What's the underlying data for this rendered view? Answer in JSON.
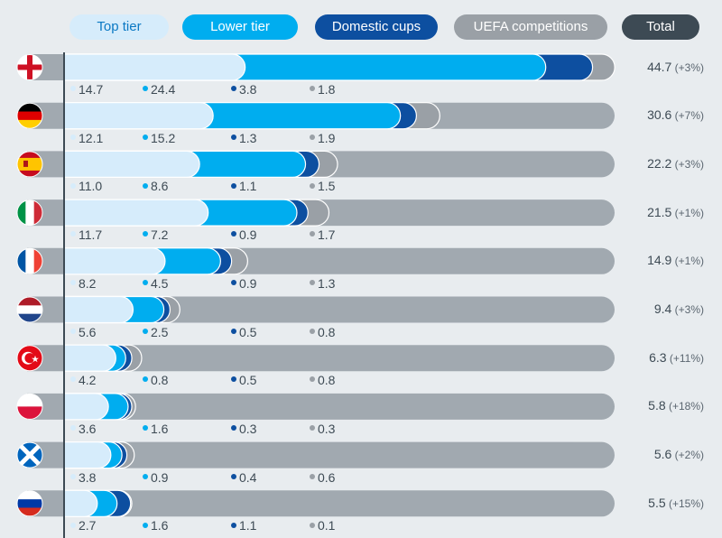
{
  "legend": {
    "top_tier": "Top tier",
    "lower_tier": "Lower tier",
    "domestic_cups": "Domestic cups",
    "uefa": "UEFA competitions",
    "total": "Total"
  },
  "colors": {
    "top_tier": "#d6ecfb",
    "lower_tier": "#00adef",
    "domestic_cups": "#0d4fa0",
    "uefa": "#9aa0a6",
    "total_bar": "#a1a9b0",
    "total_pill": "#3d4a54"
  },
  "chart_data": {
    "type": "bar",
    "stacked": true,
    "orientation": "horizontal",
    "categories": [
      "England",
      "Germany",
      "Spain",
      "Italy",
      "France",
      "Netherlands",
      "Turkey",
      "Poland",
      "Scotland",
      "Russia"
    ],
    "flag_icons": [
      "england-flag-icon",
      "germany-flag-icon",
      "spain-flag-icon",
      "italy-flag-icon",
      "france-flag-icon",
      "netherlands-flag-icon",
      "turkey-flag-icon",
      "poland-flag-icon",
      "scotland-flag-icon",
      "russia-flag-icon"
    ],
    "series": [
      {
        "name": "Top tier",
        "values": [
          14.7,
          12.1,
          11.0,
          11.7,
          8.2,
          5.6,
          4.2,
          3.6,
          3.8,
          2.7
        ]
      },
      {
        "name": "Lower tier",
        "values": [
          24.4,
          15.2,
          8.6,
          7.2,
          4.5,
          2.5,
          0.8,
          1.6,
          0.9,
          1.6
        ]
      },
      {
        "name": "Domestic cups",
        "values": [
          3.8,
          1.3,
          1.1,
          0.9,
          0.9,
          0.5,
          0.5,
          0.3,
          0.4,
          1.1
        ]
      },
      {
        "name": "UEFA competitions",
        "values": [
          1.8,
          1.9,
          1.5,
          1.7,
          1.3,
          0.8,
          0.8,
          0.3,
          0.6,
          0.1
        ]
      }
    ],
    "value_labels": [
      [
        "14.7",
        "24.4",
        "3.8",
        "1.8"
      ],
      [
        "12.1",
        "15.2",
        "1.3",
        "1.9"
      ],
      [
        "11.0",
        "8.6",
        "1.1",
        "1.5"
      ],
      [
        "11.7",
        "7.2",
        "0.9",
        "1.7"
      ],
      [
        "8.2",
        "4.5",
        "0.9",
        "1.3"
      ],
      [
        "5.6",
        "2.5",
        "0.5",
        "0.8"
      ],
      [
        "4.2",
        "0.8",
        "0.5",
        "0.8"
      ],
      [
        "3.6",
        "1.6",
        "0.3",
        "0.3"
      ],
      [
        "3.8",
        "0.9",
        "0.4",
        "0.6"
      ],
      [
        "2.7",
        "1.6",
        "1.1",
        "0.1"
      ]
    ],
    "totals": [
      "44.7",
      "30.6",
      "22.2",
      "21.5",
      "14.9",
      "9.4",
      "6.3",
      "5.8",
      "5.6",
      "5.5"
    ],
    "changes": [
      "(+3%)",
      "(+7%)",
      "(+3%)",
      "(+1%)",
      "(+1%)",
      "(+3%)",
      "(+11%)",
      "(+18%)",
      "(+2%)",
      "(+15%)"
    ],
    "xlim": [
      0,
      45
    ],
    "legend_position": "top"
  }
}
